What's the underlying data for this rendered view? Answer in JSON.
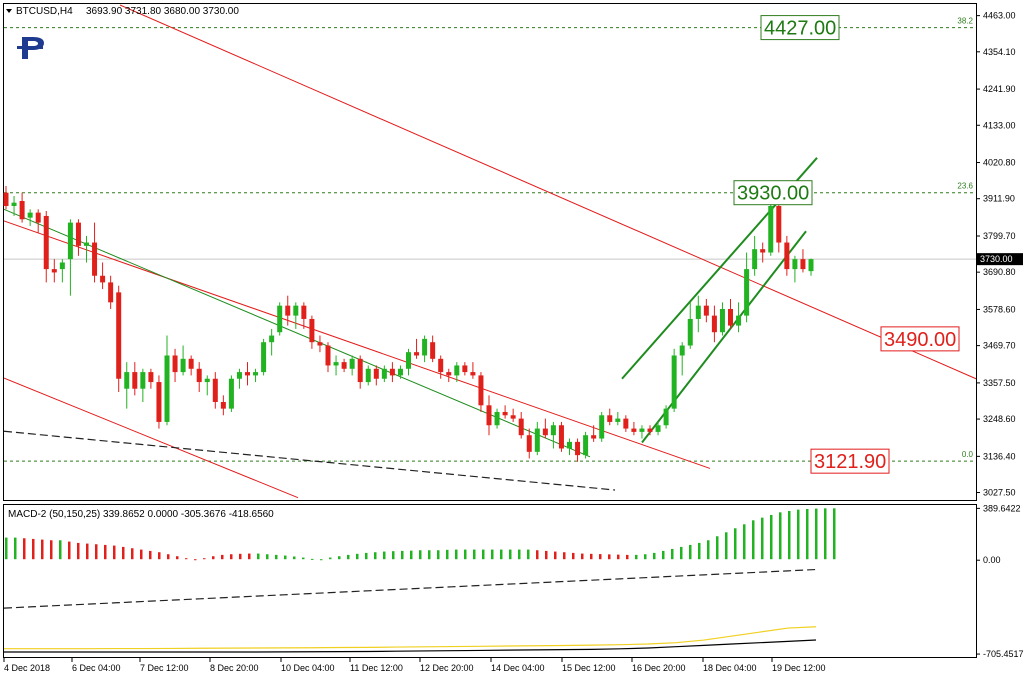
{
  "header": {
    "symbol": "BTCUSD,H4",
    "ohlc": "3693.90 3731.80 3680.00 3730.00",
    "menu_icon": "triangle-down-icon"
  },
  "logo": "broker-logo",
  "indicator": {
    "label": "MACD-2 (50,150,25) 339.8652 0.0000 -305.3676 -418.6560"
  },
  "colors": {
    "bull": "#22b322",
    "bear": "#e0201b",
    "channel_red": "#e31b1b",
    "channel_green": "#1e8c1e",
    "fib": "#2e7d1e",
    "grid_label_border": "#7a7a7a",
    "signal": "#f0d020"
  },
  "chart_data": {
    "type": "candlestick",
    "price_axis": {
      "ticks": [
        "4463.00",
        "4354.10",
        "4241.90",
        "4133.00",
        "4020.80",
        "3911.90",
        "3799.70",
        "3690.80",
        "3578.60",
        "3469.70",
        "3357.50",
        "3248.60",
        "3136.40",
        "3027.50"
      ],
      "range": [
        3008,
        4495
      ]
    },
    "time_axis": {
      "ticks": [
        "4 Dec 2018",
        "6 Dec 04:00",
        "7 Dec 12:00",
        "8 Dec 20:00",
        "10 Dec 04:00",
        "11 Dec 12:00",
        "12 Dec 20:00",
        "14 Dec 04:00",
        "15 Dec 12:00",
        "16 Dec 20:00",
        "18 Dec 04:00",
        "19 Dec 12:00"
      ]
    },
    "current_price": "3730.00",
    "fibonacci": [
      {
        "level": "38.2",
        "price": 4427.0
      },
      {
        "level": "23.6",
        "price": 3930.0
      },
      {
        "level": "0.0",
        "price": 3121.9
      }
    ],
    "level_labels": [
      {
        "text": "4427.00",
        "price": 4427.0,
        "color": "green"
      },
      {
        "text": "3930.00",
        "price": 3930.0,
        "color": "green"
      },
      {
        "text": "3490.00",
        "price": 3490.0,
        "color": "red"
      },
      {
        "text": "3121.90",
        "price": 3121.9,
        "color": "red"
      }
    ],
    "candles": [
      {
        "o": 3930,
        "h": 3950,
        "l": 3880,
        "c": 3890
      },
      {
        "o": 3890,
        "h": 3920,
        "l": 3860,
        "c": 3900
      },
      {
        "o": 3905,
        "h": 3930,
        "l": 3840,
        "c": 3850
      },
      {
        "o": 3855,
        "h": 3880,
        "l": 3830,
        "c": 3870
      },
      {
        "o": 3870,
        "h": 3880,
        "l": 3810,
        "c": 3840
      },
      {
        "o": 3860,
        "h": 3875,
        "l": 3660,
        "c": 3700
      },
      {
        "o": 3700,
        "h": 3730,
        "l": 3660,
        "c": 3690
      },
      {
        "o": 3700,
        "h": 3730,
        "l": 3660,
        "c": 3720
      },
      {
        "o": 3730,
        "h": 3850,
        "l": 3620,
        "c": 3840
      },
      {
        "o": 3840,
        "h": 3850,
        "l": 3740,
        "c": 3770
      },
      {
        "o": 3770,
        "h": 3800,
        "l": 3720,
        "c": 3780
      },
      {
        "o": 3780,
        "h": 3840,
        "l": 3660,
        "c": 3680
      },
      {
        "o": 3680,
        "h": 3720,
        "l": 3640,
        "c": 3660
      },
      {
        "o": 3660,
        "h": 3680,
        "l": 3580,
        "c": 3600
      },
      {
        "o": 3630,
        "h": 3650,
        "l": 3330,
        "c": 3370
      },
      {
        "o": 3340,
        "h": 3420,
        "l": 3280,
        "c": 3390
      },
      {
        "o": 3390,
        "h": 3420,
        "l": 3320,
        "c": 3340
      },
      {
        "o": 3340,
        "h": 3400,
        "l": 3300,
        "c": 3390
      },
      {
        "o": 3390,
        "h": 3400,
        "l": 3340,
        "c": 3360
      },
      {
        "o": 3360,
        "h": 3380,
        "l": 3220,
        "c": 3240
      },
      {
        "o": 3240,
        "h": 3500,
        "l": 3230,
        "c": 3440
      },
      {
        "o": 3440,
        "h": 3460,
        "l": 3360,
        "c": 3390
      },
      {
        "o": 3390,
        "h": 3470,
        "l": 3380,
        "c": 3430
      },
      {
        "o": 3430,
        "h": 3440,
        "l": 3380,
        "c": 3400
      },
      {
        "o": 3400,
        "h": 3420,
        "l": 3330,
        "c": 3360
      },
      {
        "o": 3360,
        "h": 3380,
        "l": 3320,
        "c": 3370
      },
      {
        "o": 3370,
        "h": 3390,
        "l": 3280,
        "c": 3300
      },
      {
        "o": 3300,
        "h": 3320,
        "l": 3260,
        "c": 3280
      },
      {
        "o": 3280,
        "h": 3380,
        "l": 3270,
        "c": 3370
      },
      {
        "o": 3370,
        "h": 3400,
        "l": 3340,
        "c": 3390
      },
      {
        "o": 3390,
        "h": 3420,
        "l": 3350,
        "c": 3380
      },
      {
        "o": 3380,
        "h": 3400,
        "l": 3360,
        "c": 3390
      },
      {
        "o": 3390,
        "h": 3490,
        "l": 3380,
        "c": 3480
      },
      {
        "o": 3480,
        "h": 3520,
        "l": 3440,
        "c": 3500
      },
      {
        "o": 3510,
        "h": 3600,
        "l": 3500,
        "c": 3590
      },
      {
        "o": 3590,
        "h": 3620,
        "l": 3530,
        "c": 3560
      },
      {
        "o": 3560,
        "h": 3600,
        "l": 3520,
        "c": 3590
      },
      {
        "o": 3590,
        "h": 3600,
        "l": 3520,
        "c": 3550
      },
      {
        "o": 3550,
        "h": 3560,
        "l": 3460,
        "c": 3480
      },
      {
        "o": 3480,
        "h": 3500,
        "l": 3450,
        "c": 3470
      },
      {
        "o": 3470,
        "h": 3480,
        "l": 3390,
        "c": 3410
      },
      {
        "o": 3410,
        "h": 3440,
        "l": 3380,
        "c": 3420
      },
      {
        "o": 3420,
        "h": 3430,
        "l": 3390,
        "c": 3400
      },
      {
        "o": 3400,
        "h": 3440,
        "l": 3380,
        "c": 3430
      },
      {
        "o": 3430,
        "h": 3440,
        "l": 3340,
        "c": 3360
      },
      {
        "o": 3360,
        "h": 3410,
        "l": 3350,
        "c": 3400
      },
      {
        "o": 3400,
        "h": 3410,
        "l": 3350,
        "c": 3370
      },
      {
        "o": 3370,
        "h": 3410,
        "l": 3360,
        "c": 3400
      },
      {
        "o": 3400,
        "h": 3420,
        "l": 3360,
        "c": 3380
      },
      {
        "o": 3380,
        "h": 3410,
        "l": 3370,
        "c": 3400
      },
      {
        "o": 3400,
        "h": 3460,
        "l": 3380,
        "c": 3450
      },
      {
        "o": 3450,
        "h": 3490,
        "l": 3430,
        "c": 3440
      },
      {
        "o": 3440,
        "h": 3500,
        "l": 3420,
        "c": 3490
      },
      {
        "o": 3480,
        "h": 3500,
        "l": 3420,
        "c": 3430
      },
      {
        "o": 3430,
        "h": 3440,
        "l": 3370,
        "c": 3390
      },
      {
        "o": 3390,
        "h": 3400,
        "l": 3360,
        "c": 3380
      },
      {
        "o": 3380,
        "h": 3420,
        "l": 3360,
        "c": 3410
      },
      {
        "o": 3410,
        "h": 3420,
        "l": 3380,
        "c": 3390
      },
      {
        "o": 3390,
        "h": 3420,
        "l": 3370,
        "c": 3380
      },
      {
        "o": 3380,
        "h": 3390,
        "l": 3270,
        "c": 3290
      },
      {
        "o": 3290,
        "h": 3320,
        "l": 3200,
        "c": 3230
      },
      {
        "o": 3230,
        "h": 3280,
        "l": 3220,
        "c": 3270
      },
      {
        "o": 3270,
        "h": 3290,
        "l": 3250,
        "c": 3260
      },
      {
        "o": 3260,
        "h": 3280,
        "l": 3240,
        "c": 3250
      },
      {
        "o": 3250,
        "h": 3270,
        "l": 3190,
        "c": 3200
      },
      {
        "o": 3200,
        "h": 3220,
        "l": 3130,
        "c": 3150
      },
      {
        "o": 3150,
        "h": 3240,
        "l": 3140,
        "c": 3220
      },
      {
        "o": 3220,
        "h": 3250,
        "l": 3190,
        "c": 3200
      },
      {
        "o": 3200,
        "h": 3240,
        "l": 3160,
        "c": 3230
      },
      {
        "o": 3230,
        "h": 3240,
        "l": 3150,
        "c": 3160
      },
      {
        "o": 3160,
        "h": 3190,
        "l": 3140,
        "c": 3180
      },
      {
        "o": 3180,
        "h": 3190,
        "l": 3120,
        "c": 3140
      },
      {
        "o": 3140,
        "h": 3210,
        "l": 3130,
        "c": 3200
      },
      {
        "o": 3200,
        "h": 3230,
        "l": 3180,
        "c": 3190
      },
      {
        "o": 3190,
        "h": 3270,
        "l": 3180,
        "c": 3260
      },
      {
        "o": 3260,
        "h": 3280,
        "l": 3230,
        "c": 3240
      },
      {
        "o": 3240,
        "h": 3270,
        "l": 3230,
        "c": 3250
      },
      {
        "o": 3250,
        "h": 3260,
        "l": 3210,
        "c": 3220
      },
      {
        "o": 3220,
        "h": 3240,
        "l": 3200,
        "c": 3210
      },
      {
        "o": 3210,
        "h": 3230,
        "l": 3190,
        "c": 3220
      },
      {
        "o": 3220,
        "h": 3230,
        "l": 3200,
        "c": 3210
      },
      {
        "o": 3210,
        "h": 3240,
        "l": 3200,
        "c": 3230
      },
      {
        "o": 3230,
        "h": 3290,
        "l": 3220,
        "c": 3280
      },
      {
        "o": 3280,
        "h": 3460,
        "l": 3270,
        "c": 3440
      },
      {
        "o": 3440,
        "h": 3480,
        "l": 3380,
        "c": 3470
      },
      {
        "o": 3470,
        "h": 3600,
        "l": 3460,
        "c": 3550
      },
      {
        "o": 3550,
        "h": 3620,
        "l": 3510,
        "c": 3590
      },
      {
        "o": 3590,
        "h": 3610,
        "l": 3540,
        "c": 3560
      },
      {
        "o": 3560,
        "h": 3590,
        "l": 3480,
        "c": 3510
      },
      {
        "o": 3510,
        "h": 3600,
        "l": 3500,
        "c": 3580
      },
      {
        "o": 3580,
        "h": 3610,
        "l": 3520,
        "c": 3530
      },
      {
        "o": 3530,
        "h": 3600,
        "l": 3510,
        "c": 3560
      },
      {
        "o": 3560,
        "h": 3750,
        "l": 3540,
        "c": 3700
      },
      {
        "o": 3700,
        "h": 3800,
        "l": 3680,
        "c": 3760
      },
      {
        "o": 3760,
        "h": 3780,
        "l": 3720,
        "c": 3750
      },
      {
        "o": 3750,
        "h": 3910,
        "l": 3740,
        "c": 3890
      },
      {
        "o": 3890,
        "h": 3900,
        "l": 3750,
        "c": 3780
      },
      {
        "o": 3780,
        "h": 3800,
        "l": 3680,
        "c": 3700
      },
      {
        "o": 3700,
        "h": 3740,
        "l": 3660,
        "c": 3730
      },
      {
        "o": 3730,
        "h": 3760,
        "l": 3690,
        "c": 3700
      },
      {
        "o": 3693.9,
        "h": 3731.8,
        "l": 3680,
        "c": 3730
      }
    ],
    "macd": {
      "axis_ticks": [
        "389.6422",
        "0.00",
        "-705.4517"
      ],
      "range": [
        -720,
        400
      ],
      "histogram": [
        170,
        170,
        165,
        160,
        155,
        150,
        150,
        140,
        130,
        125,
        120,
        115,
        110,
        100,
        90,
        80,
        70,
        60,
        45,
        30,
        15,
        0,
        -15,
        -30,
        -40,
        -45,
        -48,
        -50,
        -50,
        -45,
        -40,
        -35,
        -28,
        -20,
        -10,
        5,
        20,
        30,
        40,
        48,
        55,
        60,
        65,
        68,
        70,
        72,
        75,
        75,
        75,
        78,
        80,
        80,
        80,
        80,
        80,
        80,
        80,
        80,
        80,
        75,
        70,
        65,
        60,
        55,
        50,
        48,
        46,
        44,
        42,
        40,
        40,
        45,
        55,
        70,
        85,
        100,
        115,
        130,
        150,
        180,
        210,
        240,
        270,
        300,
        320,
        340,
        360,
        370,
        380,
        385,
        388,
        390,
        390
      ],
      "signal": [
        -665,
        -665,
        -665,
        -665,
        -664,
        -664,
        -663,
        -662,
        -661,
        -660,
        -659,
        -658,
        -656,
        -655,
        -653,
        -651,
        -649,
        -647,
        -645,
        -643,
        -641,
        -638,
        -635,
        -630,
        -620,
        -600,
        -570,
        -540,
        -510,
        -500
      ],
      "main": [
        -690,
        -690,
        -690,
        -690,
        -690,
        -690,
        -690,
        -690,
        -690,
        -690,
        -689,
        -688,
        -687,
        -686,
        -684,
        -682,
        -680,
        -678,
        -676,
        -674,
        -672,
        -670,
        -666,
        -660,
        -650,
        -640,
        -630,
        -620,
        -610,
        -600
      ],
      "signal_dashed": [
        -360,
        -350,
        -340,
        -330,
        -320,
        -310,
        -300,
        -290,
        -280,
        -270,
        -260,
        -250,
        -240,
        -230,
        -220,
        -210,
        -200,
        -190,
        -180,
        -170,
        -160,
        -150,
        -140,
        -130,
        -120,
        -110,
        -100,
        -90,
        -80,
        -70
      ]
    }
  }
}
